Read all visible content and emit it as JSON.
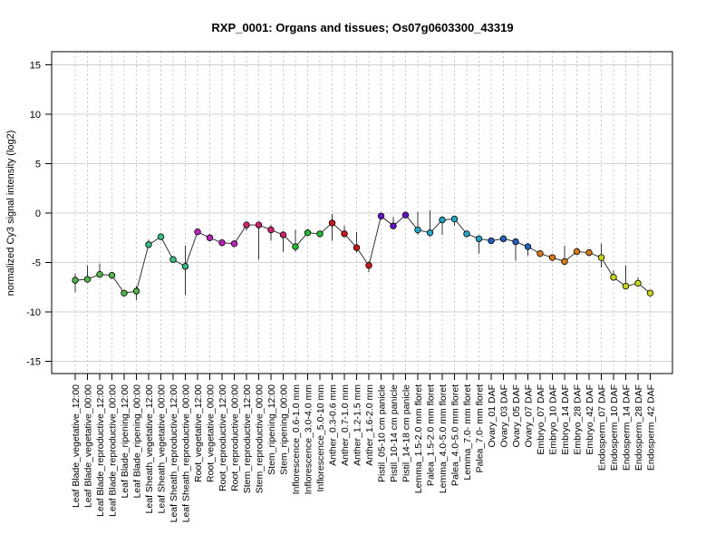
{
  "chart_data": {
    "type": "line",
    "title": "RXP_0001: Organs and tissues; Os07g0603300_43319",
    "xlabel": "",
    "ylabel": "normalized Cy3 signal intensity (log2)",
    "ylim": [
      -15,
      15
    ],
    "yticks": [
      -15,
      -10,
      -5,
      0,
      5,
      10,
      15
    ],
    "grid": "dotted vertical lines per category, solid horizontal lines at y ticks",
    "legend": "none",
    "categories": [
      "Leaf Blade_vegetative_12:00",
      "Leaf Blade_vegetative_00:00",
      "Leaf Blade_reproductive_12:00",
      "Leaf Blade_reproductive_00:00",
      "Leaf Blade_ripening_12:00",
      "Leaf Blade_ripening_00:00",
      "Leaf Sheath_vegetative_12:00",
      "Leaf Sheath_vegetative_00:00",
      "Leaf Sheath_reproductive_12:00",
      "Leaf Sheath_reproductive_00:00",
      "Root_vegetative_12:00",
      "Root_vegetative_00:00",
      "Root_reproductive_12:00",
      "Root_reproductive_00:00",
      "Stem_reproductive_12:00",
      "Stem_reproductive_00:00",
      "Stem_ripening_12:00",
      "Stem_ripening_00:00",
      "Inflorescence_0.6-1.0 mm",
      "Inflorescence_3.0-4.0 mm",
      "Inflorescence_5.0-10 mm",
      "Anther_0.3-0.6 mm",
      "Anther_0.7-1.0 mm",
      "Anther_1.2-1.5 mm",
      "Anther_1.6-2.0 mm",
      "Pistil_05-10 cm panicle",
      "Pistil_10-14 cm panicle",
      "Pistil_14-18 cm panicle",
      "Lemma_1.5-2.0 mm floret",
      "Palea_1.5-2.0 mm floret",
      "Lemma_4.0-5.0 mm floret",
      "Palea_4.0-5.0 mm floret",
      "Lemma_7.0- mm floret",
      "Palea_7.0- mm floret",
      "Ovary_01 DAF",
      "Ovary_03 DAF",
      "Ovary_05 DAF",
      "Ovary_07 DAF",
      "Embryo_07 DAF",
      "Embryo_10 DAF",
      "Embryo_14 DAF",
      "Embryo_28 DAF",
      "Embryo_42 DAF",
      "Endosperm_07 DAF",
      "Endosperm_10 DAF",
      "Endosperm_14 DAF",
      "Endosperm_28 DAF",
      "Endosperm_42 DAF"
    ],
    "values": [
      -6.8,
      -6.7,
      -6.2,
      -6.3,
      -8.1,
      -7.9,
      -3.2,
      -2.4,
      -4.7,
      -5.4,
      -1.9,
      -2.5,
      -3.0,
      -3.1,
      -1.2,
      -1.2,
      -1.7,
      -2.2,
      -3.4,
      -2.0,
      -2.1,
      -1.0,
      -2.1,
      -3.5,
      -5.3,
      -0.3,
      -1.3,
      -0.2,
      -1.7,
      -2.0,
      -0.7,
      -0.6,
      -2.1,
      -2.6,
      -2.8,
      -2.6,
      -2.9,
      -3.4,
      -4.1,
      -4.5,
      -4.9,
      -3.9,
      -4.0,
      -4.5,
      -6.5,
      -7.4,
      -7.1,
      -8.1
    ],
    "error_low": [
      -8.0,
      -7.0,
      -6.5,
      -6.6,
      -8.3,
      -8.8,
      -3.5,
      -2.6,
      -5.0,
      -8.3,
      -2.1,
      -2.7,
      -3.2,
      -3.3,
      -1.8,
      -4.7,
      -2.8,
      -3.9,
      -3.9,
      -2.2,
      -2.3,
      -2.8,
      -2.4,
      -4.0,
      -6.0,
      -0.6,
      -1.6,
      -0.4,
      -2.2,
      -2.4,
      -2.2,
      -1.3,
      -2.4,
      -4.1,
      -3.1,
      -2.8,
      -4.8,
      -4.3,
      -4.3,
      -4.8,
      -5.2,
      -4.1,
      -4.3,
      -5.5,
      -6.8,
      -7.7,
      -7.4,
      -8.3
    ],
    "error_high": [
      -6.1,
      -5.3,
      -5.1,
      -6.1,
      -7.9,
      -7.4,
      -2.7,
      -2.2,
      -4.4,
      -3.3,
      -1.7,
      -2.3,
      -2.8,
      -2.9,
      -1.0,
      -1.0,
      -1.2,
      -1.9,
      -1.7,
      -1.6,
      -1.9,
      -0.1,
      -1.3,
      -1.9,
      -4.9,
      0.0,
      -0.4,
      0.0,
      0.1,
      0.3,
      -0.5,
      -0.4,
      -1.9,
      -2.3,
      -2.6,
      -2.4,
      -2.7,
      -3.2,
      -3.9,
      -4.3,
      -3.3,
      -3.7,
      -3.7,
      -3.1,
      -5.8,
      -5.3,
      -6.5,
      -7.9
    ],
    "point_colors": [
      "#4DB847",
      "#4DB847",
      "#4DB847",
      "#4DB847",
      "#4DB847",
      "#4DB847",
      "#2FC283",
      "#2FC283",
      "#2FC283",
      "#2FC283",
      "#C21EC2",
      "#C21EC2",
      "#C21EC2",
      "#C21EC2",
      "#D61E72",
      "#D61E72",
      "#D61E72",
      "#D61E72",
      "#1EBE34",
      "#1EBE34",
      "#1EBE34",
      "#CC1818",
      "#CC1818",
      "#CC1818",
      "#CC1818",
      "#6612CC",
      "#6612CC",
      "#6612CC",
      "#1EA7C9",
      "#1EA7C9",
      "#1EA7C9",
      "#1EA7C9",
      "#1EA7C9",
      "#1EA7C9",
      "#2262C2",
      "#2262C2",
      "#2262C2",
      "#2262C2",
      "#D97A12",
      "#D97A12",
      "#D97A12",
      "#D97A12",
      "#D97A12",
      "#C7D313",
      "#C7D313",
      "#C7D313",
      "#C7D313",
      "#C7D313"
    ]
  }
}
